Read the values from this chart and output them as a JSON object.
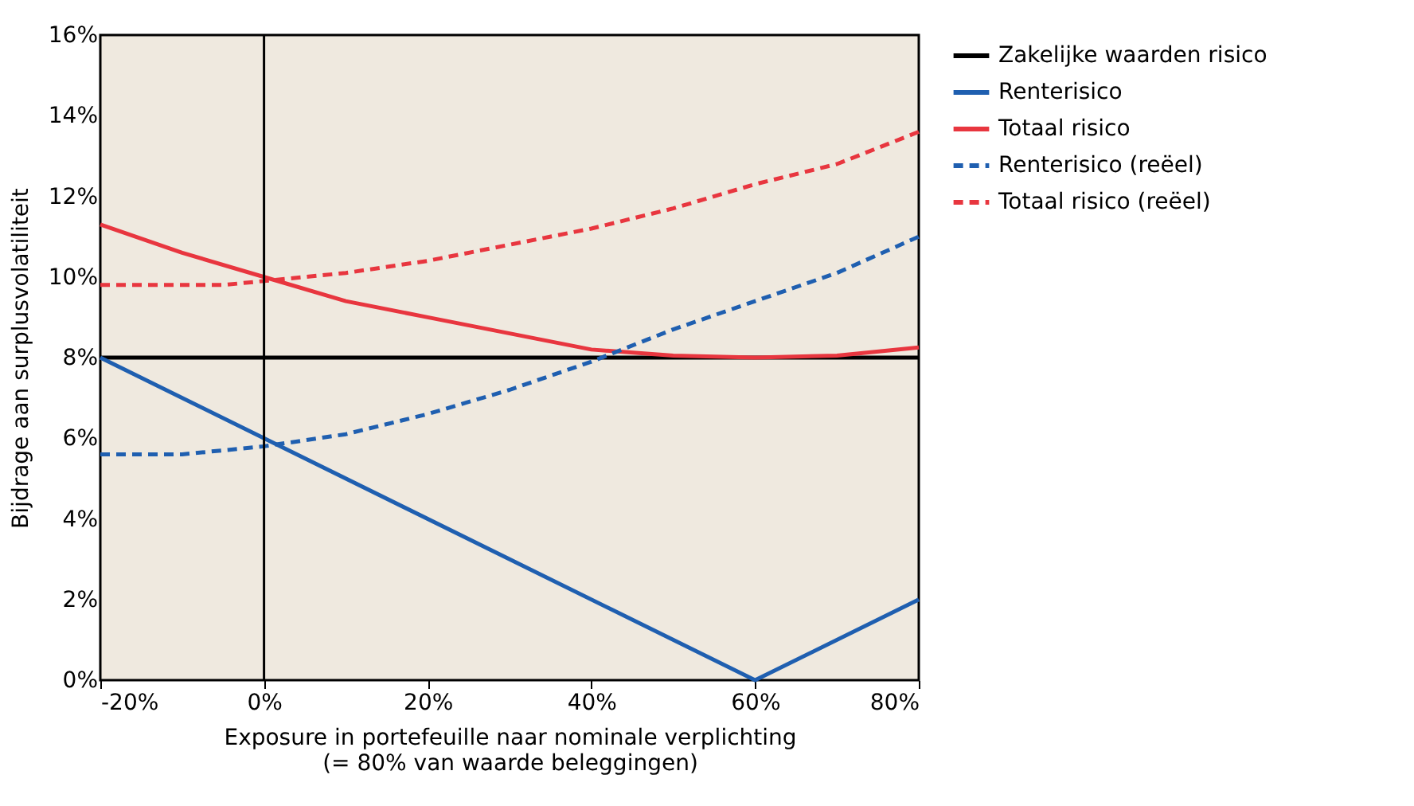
{
  "chart_data": {
    "type": "line",
    "xlabel": "Exposure in portefeuille naar nominale verplichting\n(= 80% van waarde beleggingen)",
    "ylabel": "Bijdrage aan surplusvolatiliteit",
    "xlim": [
      -20,
      80
    ],
    "ylim": [
      0,
      16
    ],
    "xticks": [
      {
        "value": -20,
        "label": "-20%"
      },
      {
        "value": 0,
        "label": "0%"
      },
      {
        "value": 20,
        "label": "20%"
      },
      {
        "value": 40,
        "label": "40%"
      },
      {
        "value": 60,
        "label": "60%"
      },
      {
        "value": 80,
        "label": "80%"
      }
    ],
    "yticks": [
      {
        "value": 0,
        "label": "0%"
      },
      {
        "value": 2,
        "label": "2%"
      },
      {
        "value": 4,
        "label": "4%"
      },
      {
        "value": 6,
        "label": "6%"
      },
      {
        "value": 8,
        "label": "8%"
      },
      {
        "value": 10,
        "label": "10%"
      },
      {
        "value": 12,
        "label": "12%"
      },
      {
        "value": 14,
        "label": "14%"
      },
      {
        "value": 16,
        "label": "16%"
      }
    ],
    "grid": false,
    "legend": "right",
    "marker": "none",
    "ref_lines": [
      {
        "axis": "x",
        "value": 0,
        "color": "#000000"
      }
    ],
    "series": [
      {
        "name": "Zakelijke waarden risico",
        "color": "#000000",
        "line_style": "solid",
        "x": [
          -20,
          80
        ],
        "values": [
          8,
          8
        ]
      },
      {
        "name": "Renterisico",
        "color": "#1f5fb0",
        "line_style": "solid",
        "x": [
          -20,
          0,
          60,
          80
        ],
        "values": [
          8,
          6,
          0,
          2
        ]
      },
      {
        "name": "Totaal risico",
        "color": "#e8363f",
        "line_style": "solid",
        "x": [
          -20,
          -10,
          0,
          10,
          20,
          30,
          40,
          50,
          60,
          70,
          80
        ],
        "values": [
          11.3,
          10.6,
          10.0,
          9.4,
          9.0,
          8.6,
          8.2,
          8.05,
          8.0,
          8.05,
          8.25
        ]
      },
      {
        "name": "Renterisico (reëel)",
        "color": "#1f5fb0",
        "line_style": "dashed",
        "x": [
          -20,
          -10,
          -5,
          0,
          10,
          20,
          30,
          40,
          50,
          60,
          70,
          80
        ],
        "values": [
          5.6,
          5.6,
          5.7,
          5.8,
          6.1,
          6.6,
          7.2,
          7.9,
          8.7,
          9.4,
          10.1,
          11.0
        ]
      },
      {
        "name": "Totaal risico (reëel)",
        "color": "#e8363f",
        "line_style": "dashed",
        "x": [
          -20,
          -5,
          0,
          10,
          20,
          30,
          40,
          50,
          60,
          70,
          80
        ],
        "values": [
          9.8,
          9.8,
          9.9,
          10.1,
          10.4,
          10.8,
          11.2,
          11.7,
          12.3,
          12.8,
          13.6
        ]
      }
    ]
  }
}
